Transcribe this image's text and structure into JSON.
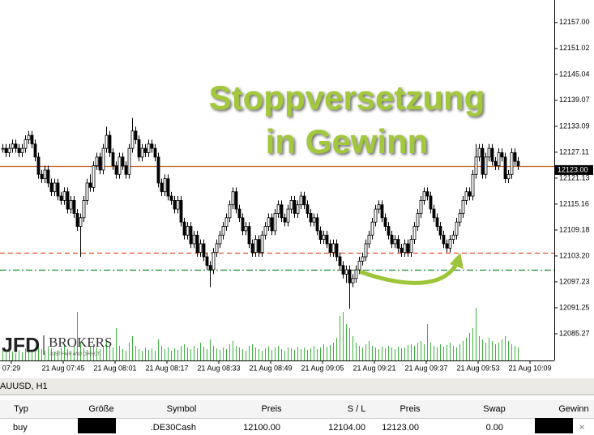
{
  "chart_data": {
    "type": "candlestick",
    "annotation": [
      "Stoppversetzung",
      "in Gewinn"
    ],
    "annotation_color": "#a2c83a",
    "ylim": [
      12079.1,
      12162.2
    ],
    "yticks": [
      {
        "value": 12157,
        "label": "12157.00"
      },
      {
        "value": 12151.02,
        "label": "12151.02"
      },
      {
        "value": 12145.04,
        "label": "12145.04"
      },
      {
        "value": 12139.07,
        "label": "12139.07"
      },
      {
        "value": 12133.09,
        "label": "12133.09"
      },
      {
        "value": 12127.11,
        "label": "12127.11"
      },
      {
        "value": 12121.13,
        "label": "12121.13"
      },
      {
        "value": 12115.16,
        "label": "12115.16"
      },
      {
        "value": 12109.18,
        "label": "12109.18"
      },
      {
        "value": 12103.2,
        "label": "12103.20"
      },
      {
        "value": 12097.23,
        "label": "12097.23"
      },
      {
        "value": 12091.25,
        "label": "12091.25"
      },
      {
        "value": 12085.27,
        "label": "12085.27"
      }
    ],
    "xtick_labels": [
      "07:29",
      "21 Aug 07:45",
      "21 Aug 08:01",
      "21 Aug 08:17",
      "21 Aug 08:33",
      "21 Aug 08:49",
      "21 Aug 09:05",
      "21 Aug 09:21",
      "21 Aug 09:37",
      "21 Aug 09:53",
      "21 Aug 10:09"
    ],
    "current_price": {
      "value": 12123,
      "label": "12123.00"
    },
    "price_lines": [
      {
        "value": 12124,
        "color": "#c4692a",
        "style": "solid"
      },
      {
        "value": 12104,
        "color": "#e4502a",
        "style": "dashed"
      },
      {
        "value": 12100,
        "color": "#1e8a30",
        "style": "dashdot"
      }
    ],
    "volume_lim": [
      0,
      100
    ],
    "volumes": [
      12,
      10,
      14,
      11,
      9,
      13,
      10,
      15,
      18,
      12,
      16,
      20,
      14,
      12,
      17,
      15,
      11,
      13,
      16,
      19,
      14,
      12,
      18,
      60,
      22,
      15,
      13,
      17,
      20,
      16,
      14,
      18,
      24,
      20,
      16,
      40,
      18,
      14,
      12,
      22,
      30,
      18,
      14,
      12,
      16,
      13,
      15,
      12,
      26,
      18,
      14,
      16,
      12,
      15,
      13,
      18,
      20,
      16,
      14,
      18,
      15,
      22,
      17,
      14,
      26,
      18,
      15,
      13,
      16,
      14,
      20,
      24,
      18,
      16,
      14,
      12,
      18,
      20,
      16,
      14,
      12,
      15,
      17,
      13,
      16,
      18,
      14,
      12,
      16,
      15,
      13,
      17,
      14,
      16,
      13,
      15,
      18,
      14,
      16,
      20,
      17,
      19,
      22,
      28,
      55,
      60,
      45,
      40,
      30,
      22,
      18,
      16,
      20,
      24,
      18,
      16,
      14,
      17,
      15,
      18,
      16,
      14,
      17,
      15,
      16,
      19,
      20,
      18,
      22,
      24,
      20,
      45,
      22,
      18,
      16,
      20,
      17,
      19,
      22,
      18,
      16,
      20,
      24,
      28,
      34,
      40,
      65,
      30,
      26,
      22,
      28,
      24,
      20,
      22,
      26,
      30,
      24,
      20,
      18,
      16
    ],
    "candles": [
      [
        12128,
        12129,
        12127,
        12128
      ],
      [
        12128,
        12129,
        12126,
        12127
      ],
      [
        12127,
        12129,
        12126,
        12128
      ],
      [
        12128,
        12130,
        12127,
        12129
      ],
      [
        12129,
        12130,
        12127,
        12128
      ],
      [
        12128,
        12129,
        12126,
        12127
      ],
      [
        12127,
        12129,
        12126,
        12128
      ],
      [
        12128,
        12131,
        12127,
        12130
      ],
      [
        12130,
        12132,
        12129,
        12131
      ],
      [
        12131,
        12132,
        12128,
        12129
      ],
      [
        12129,
        12130,
        12125,
        12126
      ],
      [
        12126,
        12127,
        12121,
        12122
      ],
      [
        12122,
        12123,
        12120,
        12121
      ],
      [
        12121,
        12124,
        12120,
        12123
      ],
      [
        12123,
        12124,
        12119,
        12120
      ],
      [
        12120,
        12121,
        12117,
        12118
      ],
      [
        12118,
        12121,
        12117,
        12120
      ],
      [
        12120,
        12121,
        12116,
        12117
      ],
      [
        12117,
        12118,
        12115,
        12116
      ],
      [
        12116,
        12119,
        12115,
        12118
      ],
      [
        12118,
        12119,
        12113,
        12114
      ],
      [
        12114,
        12117,
        12113,
        12116
      ],
      [
        12116,
        12117,
        12112,
        12113
      ],
      [
        12113,
        12114,
        12109,
        12110
      ],
      [
        12110,
        12113,
        12103,
        12112
      ],
      [
        12112,
        12117,
        12111,
        12116
      ],
      [
        12116,
        12121,
        12115,
        12120
      ],
      [
        12120,
        12122,
        12118,
        12119
      ],
      [
        12119,
        12125,
        12118,
        12124
      ],
      [
        12124,
        12127,
        12123,
        12126
      ],
      [
        12126,
        12127,
        12122,
        12123
      ],
      [
        12123,
        12129,
        12122,
        12128
      ],
      [
        12128,
        12133,
        12127,
        12131
      ],
      [
        12131,
        12132,
        12126,
        12127
      ],
      [
        12127,
        12128,
        12123,
        12124
      ],
      [
        12124,
        12125,
        12121,
        12122
      ],
      [
        12122,
        12127,
        12121,
        12126
      ],
      [
        12126,
        12127,
        12123,
        12124
      ],
      [
        12124,
        12125,
        12121,
        12122
      ],
      [
        12122,
        12129,
        12121,
        12128
      ],
      [
        12128,
        12135,
        12127,
        12132
      ],
      [
        12132,
        12133,
        12129,
        12130
      ],
      [
        12130,
        12131,
        12125,
        12126
      ],
      [
        12126,
        12129,
        12125,
        12128
      ],
      [
        12128,
        12129,
        12126,
        12127
      ],
      [
        12127,
        12130,
        12126,
        12129
      ],
      [
        12129,
        12130,
        12127,
        12128
      ],
      [
        12128,
        12129,
        12125,
        12126
      ],
      [
        12126,
        12127,
        12119,
        12120
      ],
      [
        12120,
        12121,
        12117,
        12118
      ],
      [
        12118,
        12122,
        12117,
        12121
      ],
      [
        12121,
        12122,
        12116,
        12117
      ],
      [
        12117,
        12118,
        12115,
        12116
      ],
      [
        12116,
        12117,
        12113,
        12114
      ],
      [
        12114,
        12117,
        12113,
        12116
      ],
      [
        12116,
        12117,
        12110,
        12111
      ],
      [
        12111,
        12112,
        12107,
        12108
      ],
      [
        12108,
        12111,
        12107,
        12110
      ],
      [
        12110,
        12111,
        12105,
        12106
      ],
      [
        12106,
        12109,
        12105,
        12108
      ],
      [
        12108,
        12109,
        12103,
        12104
      ],
      [
        12104,
        12107,
        12103,
        12106
      ],
      [
        12106,
        12107,
        12102,
        12103
      ],
      [
        12103,
        12104,
        12100,
        12101
      ],
      [
        12101,
        12102,
        12096,
        12100
      ],
      [
        12100,
        12105,
        12099,
        12104
      ],
      [
        12104,
        12107,
        12103,
        12106
      ],
      [
        12106,
        12109,
        12105,
        12108
      ],
      [
        12108,
        12111,
        12107,
        12110
      ],
      [
        12110,
        12113,
        12109,
        12112
      ],
      [
        12112,
        12116,
        12111,
        12115
      ],
      [
        12115,
        12119,
        12114,
        12118
      ],
      [
        12118,
        12119,
        12113,
        12114
      ],
      [
        12114,
        12115,
        12111,
        12112
      ],
      [
        12112,
        12113,
        12108,
        12109
      ],
      [
        12109,
        12111,
        12108,
        12110
      ],
      [
        12110,
        12111,
        12105,
        12106
      ],
      [
        12106,
        12107,
        12103,
        12104
      ],
      [
        12104,
        12108,
        12103,
        12107
      ],
      [
        12107,
        12108,
        12103,
        12104
      ],
      [
        12104,
        12109,
        12103,
        12108
      ],
      [
        12108,
        12111,
        12107,
        12110
      ],
      [
        12110,
        12113,
        12109,
        12112
      ],
      [
        12112,
        12113,
        12108,
        12109
      ],
      [
        12109,
        12114,
        12108,
        12113
      ],
      [
        12113,
        12116,
        12112,
        12115
      ],
      [
        12115,
        12116,
        12111,
        12112
      ],
      [
        12112,
        12113,
        12110,
        12111
      ],
      [
        12111,
        12115,
        12110,
        12114
      ],
      [
        12114,
        12117,
        12113,
        12116
      ],
      [
        12116,
        12117,
        12112,
        12113
      ],
      [
        12113,
        12116,
        12112,
        12115
      ],
      [
        12115,
        12118,
        12114,
        12117
      ],
      [
        12117,
        12118,
        12114,
        12115
      ],
      [
        12115,
        12116,
        12112,
        12113
      ],
      [
        12113,
        12114,
        12110,
        12111
      ],
      [
        12111,
        12113,
        12110,
        12112
      ],
      [
        12112,
        12113,
        12108,
        12109
      ],
      [
        12109,
        12110,
        12106,
        12107
      ],
      [
        12107,
        12109,
        12106,
        12108
      ],
      [
        12108,
        12109,
        12105,
        12106
      ],
      [
        12106,
        12107,
        12103,
        12104
      ],
      [
        12104,
        12107,
        12103,
        12106
      ],
      [
        12106,
        12107,
        12102,
        12103
      ],
      [
        12103,
        12104,
        12100,
        12101
      ],
      [
        12101,
        12102,
        12098,
        12099
      ],
      [
        12099,
        12101,
        12097,
        12100
      ],
      [
        12100,
        12101,
        12091,
        12097
      ],
      [
        12097,
        12099,
        12096,
        12098
      ],
      [
        12098,
        12101,
        12097,
        12100
      ],
      [
        12100,
        12103,
        12099,
        12102
      ],
      [
        12102,
        12104,
        12101,
        12103
      ],
      [
        12103,
        12107,
        12102,
        12106
      ],
      [
        12106,
        12109,
        12105,
        12108
      ],
      [
        12108,
        12112,
        12107,
        12111
      ],
      [
        12111,
        12115,
        12110,
        12114
      ],
      [
        12114,
        12116,
        12113,
        12115
      ],
      [
        12115,
        12116,
        12111,
        12112
      ],
      [
        12112,
        12113,
        12109,
        12110
      ],
      [
        12110,
        12111,
        12107,
        12108
      ],
      [
        12108,
        12109,
        12105,
        12106
      ],
      [
        12106,
        12108,
        12105,
        12107
      ],
      [
        12107,
        12108,
        12104,
        12105
      ],
      [
        12105,
        12106,
        12103,
        12104
      ],
      [
        12104,
        12107,
        12103,
        12106
      ],
      [
        12106,
        12107,
        12103,
        12104
      ],
      [
        12104,
        12108,
        12103,
        12107
      ],
      [
        12107,
        12111,
        12106,
        12110
      ],
      [
        12110,
        12114,
        12109,
        12113
      ],
      [
        12113,
        12117,
        12112,
        12116
      ],
      [
        12116,
        12119,
        12115,
        12118
      ],
      [
        12118,
        12119,
        12116,
        12117
      ],
      [
        12117,
        12118,
        12113,
        12114
      ],
      [
        12114,
        12115,
        12111,
        12112
      ],
      [
        12112,
        12113,
        12109,
        12110
      ],
      [
        12110,
        12111,
        12107,
        12108
      ],
      [
        12108,
        12109,
        12105,
        12106
      ],
      [
        12106,
        12107,
        12104,
        12105
      ],
      [
        12105,
        12108,
        12104,
        12107
      ],
      [
        12107,
        12109,
        12106,
        12108
      ],
      [
        12108,
        12112,
        12107,
        12111
      ],
      [
        12111,
        12114,
        12110,
        12113
      ],
      [
        12113,
        12117,
        12112,
        12116
      ],
      [
        12116,
        12119,
        12115,
        12118
      ],
      [
        12118,
        12119,
        12116,
        12117
      ],
      [
        12117,
        12123,
        12116,
        12122
      ],
      [
        12122,
        12129,
        12121,
        12126
      ],
      [
        12126,
        12129,
        12125,
        12128
      ],
      [
        12128,
        12129,
        12121,
        12122
      ],
      [
        12122,
        12127,
        12121,
        12126
      ],
      [
        12126,
        12129,
        12125,
        12128
      ],
      [
        12128,
        12129,
        12124,
        12125
      ],
      [
        12125,
        12126,
        12123,
        12124
      ],
      [
        12124,
        12128,
        12123,
        12127
      ],
      [
        12127,
        12128,
        12125,
        12126
      ],
      [
        12126,
        12127,
        12120,
        12121
      ],
      [
        12121,
        12123,
        12120,
        12122
      ],
      [
        12122,
        12128,
        12121,
        12127
      ],
      [
        12127,
        12128,
        12124,
        12125
      ],
      [
        12125,
        12126,
        12123,
        12124
      ]
    ]
  },
  "logo": {
    "mark": "JFD",
    "name": "BROKERS",
    "tagline": "JUST FAIR AND DIRECT"
  },
  "tab": "AUUSD, H1",
  "table": {
    "headers": [
      "Typ",
      "Größe",
      "Symbol",
      "Preis",
      "S / L",
      "Preis",
      "Swap",
      "Gewinn"
    ],
    "row": {
      "type": "buy",
      "symbol": ".DE30Cash",
      "open_price": "12100.00",
      "stop_loss": "12104.00",
      "price": "12123.00",
      "swap": "0.00",
      "close": "×"
    }
  }
}
